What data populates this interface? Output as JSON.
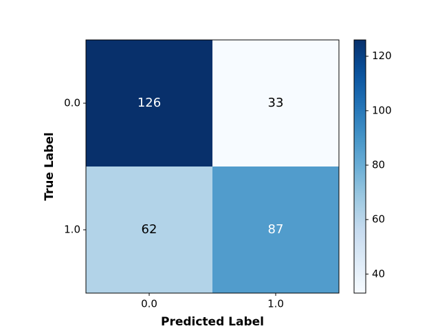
{
  "chart_data": {
    "type": "heatmap",
    "x_label": "Predicted Label",
    "y_label": "True Label",
    "x_categories": [
      "0.0",
      "1.0"
    ],
    "y_categories": [
      "0.0",
      "1.0"
    ],
    "values": [
      [
        126,
        33
      ],
      [
        62,
        87
      ]
    ],
    "colormap": "Blues",
    "clim": [
      33,
      126
    ],
    "cticks": [
      40,
      60,
      80,
      100,
      120
    ]
  }
}
